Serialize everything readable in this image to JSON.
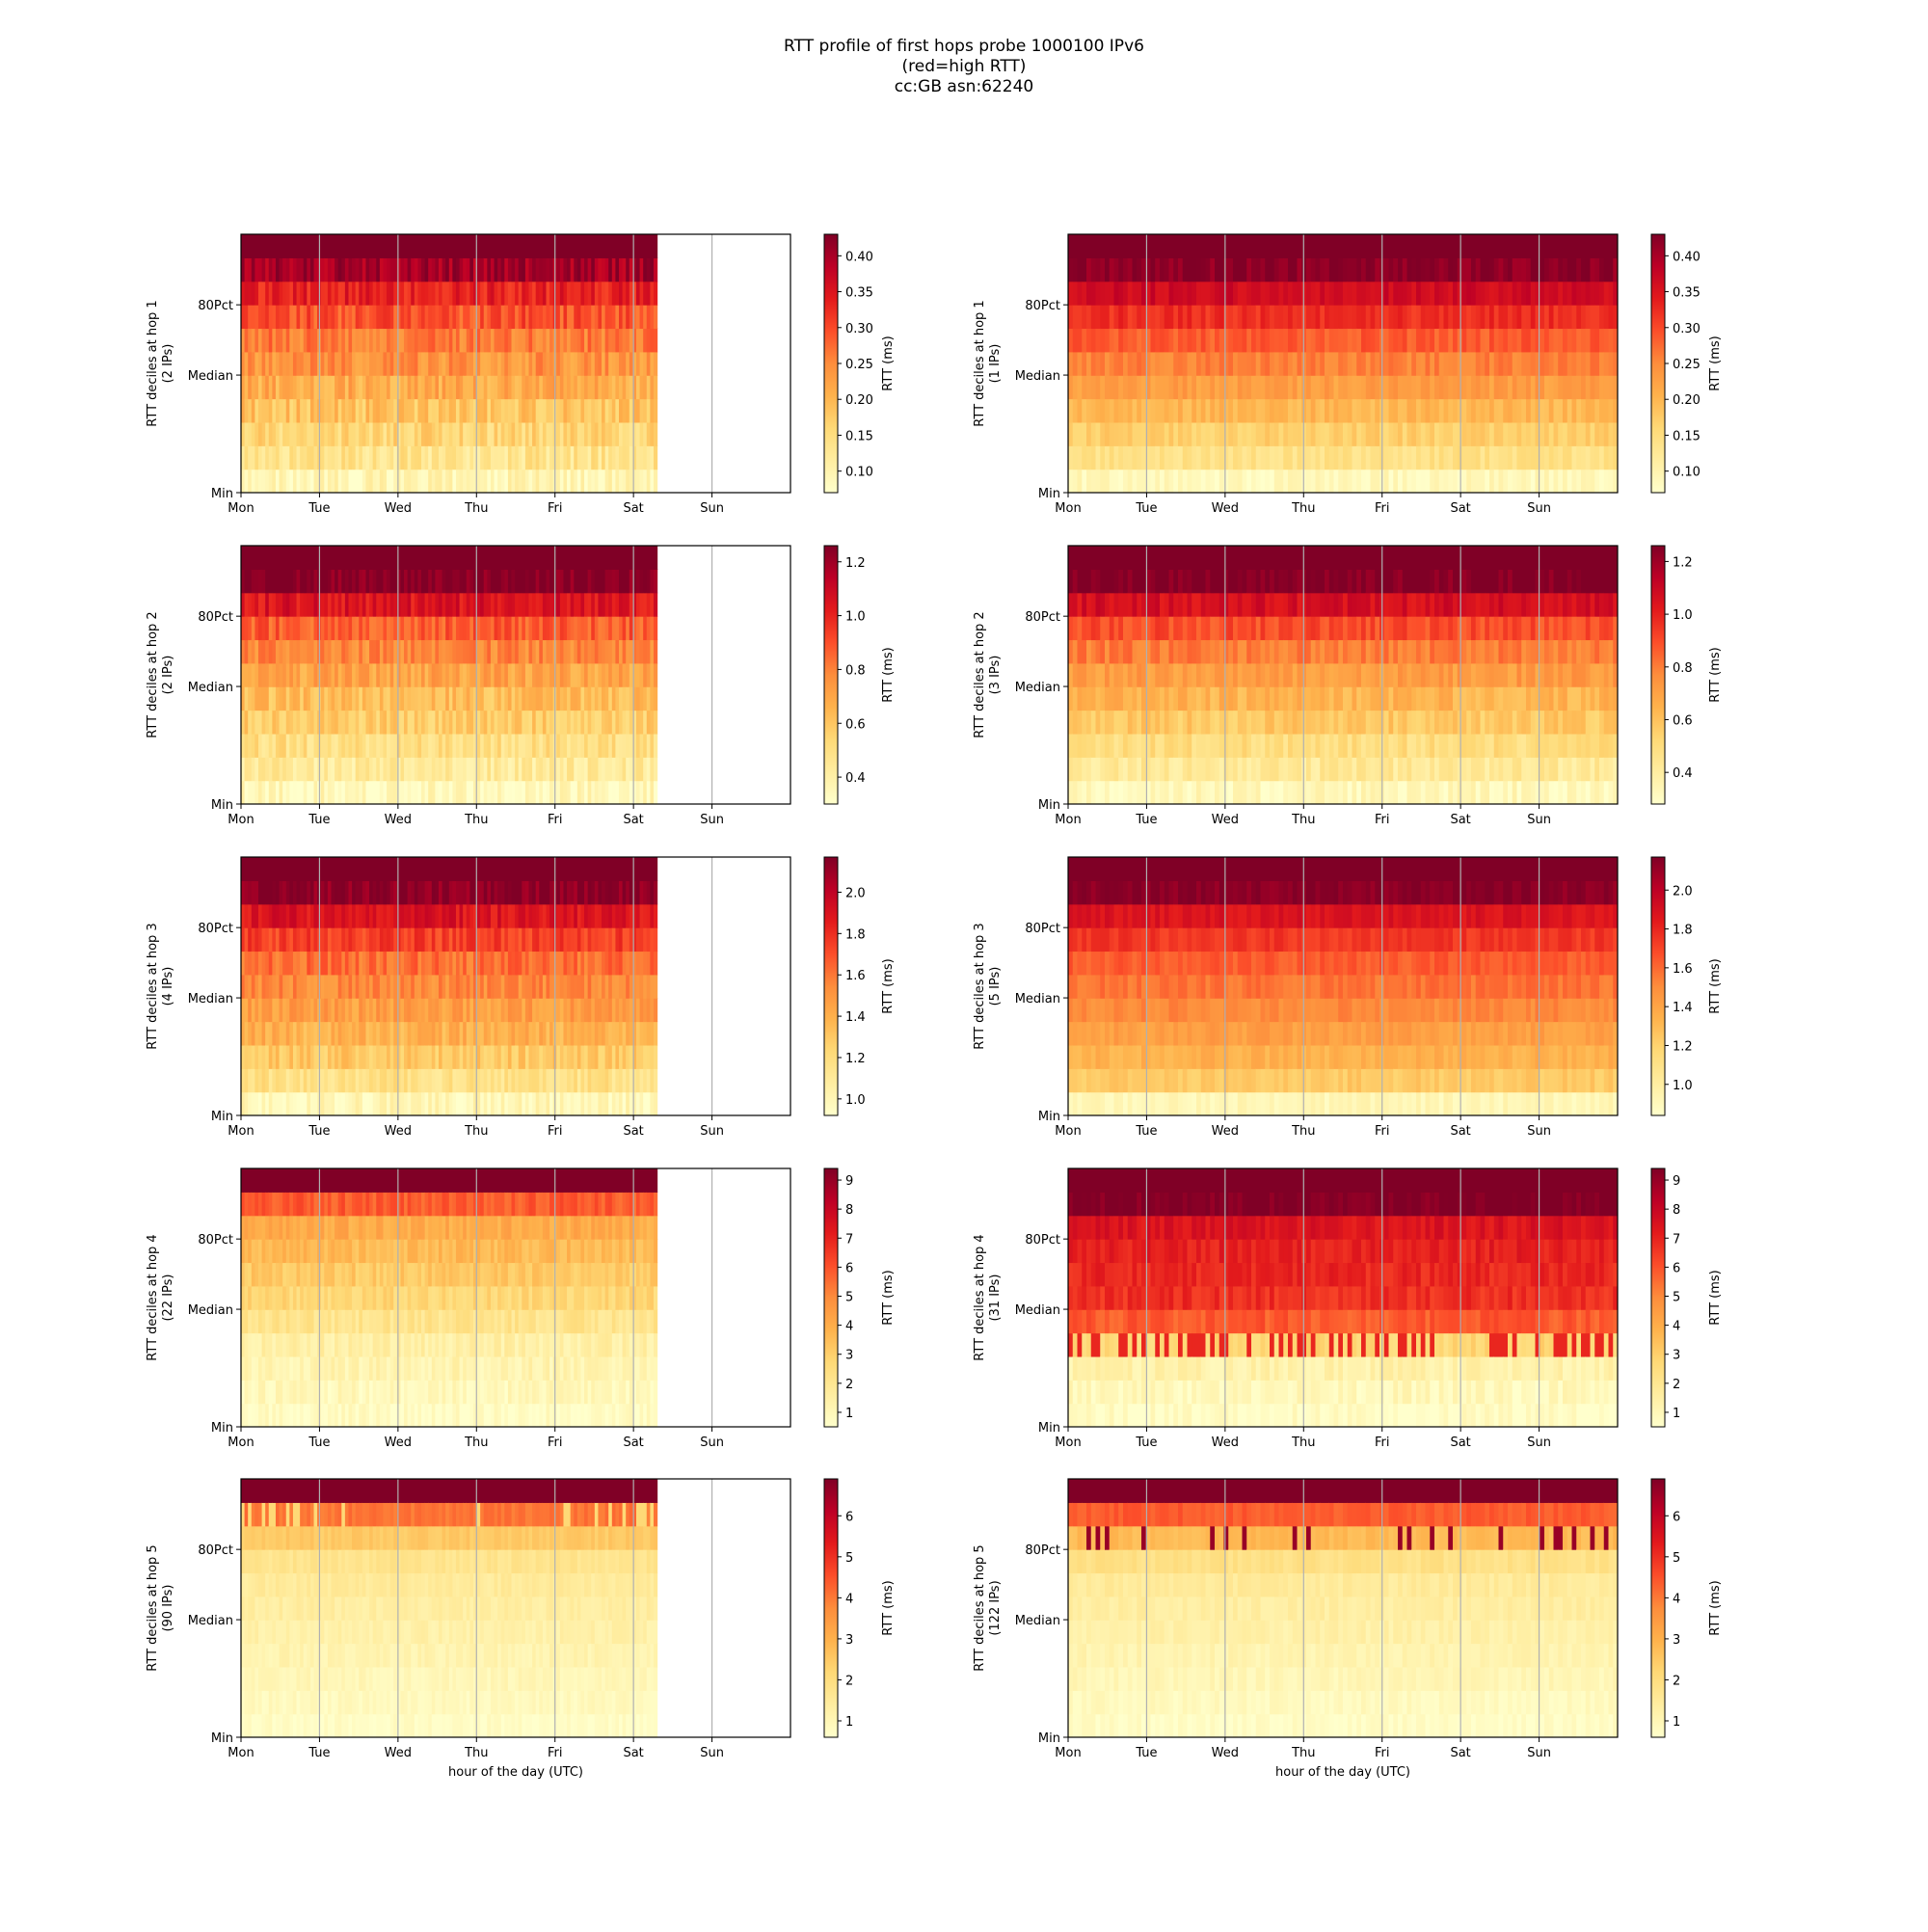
{
  "figure": {
    "title_lines": [
      "RTT profile of first hops probe 1000100 IPv6",
      "(red=high RTT)",
      "cc:GB asn:62240"
    ]
  },
  "chart_data": [
    {
      "type": "heatmap",
      "title": "",
      "xlabel": "",
      "ylabel": "RTT deciles at hop 1",
      "ylabel_sub": "(2 IPs)",
      "x_ticks": [
        "Mon",
        "Tue",
        "Wed",
        "Thu",
        "Fri",
        "Sat",
        "Sun"
      ],
      "y_ticks": [
        "Min",
        "Median",
        "80Pct"
      ],
      "x_extent_days": 7,
      "data_extent_days": 5.3,
      "grid": true,
      "colorbar": {
        "label": "RTT (ms)",
        "ticks": [
          "0.10",
          "0.15",
          "0.20",
          "0.25",
          "0.30",
          "0.35",
          "0.40"
        ],
        "range": [
          0.07,
          0.43
        ]
      },
      "colormap": "YlOrRd",
      "pattern": "hop1a"
    },
    {
      "type": "heatmap",
      "title": "",
      "xlabel": "",
      "ylabel": "RTT deciles at hop 1",
      "ylabel_sub": "(1 IPs)",
      "x_ticks": [
        "Mon",
        "Tue",
        "Wed",
        "Thu",
        "Fri",
        "Sat",
        "Sun"
      ],
      "y_ticks": [
        "Min",
        "Median",
        "80Pct"
      ],
      "x_extent_days": 7,
      "data_extent_days": 7,
      "grid": true,
      "colorbar": {
        "label": "RTT (ms)",
        "ticks": [
          "0.10",
          "0.15",
          "0.20",
          "0.25",
          "0.30",
          "0.35",
          "0.40"
        ],
        "range": [
          0.07,
          0.43
        ]
      },
      "colormap": "YlOrRd",
      "pattern": "hop1b"
    },
    {
      "type": "heatmap",
      "title": "",
      "xlabel": "",
      "ylabel": "RTT deciles at hop 2",
      "ylabel_sub": "(2 IPs)",
      "x_ticks": [
        "Mon",
        "Tue",
        "Wed",
        "Thu",
        "Fri",
        "Sat",
        "Sun"
      ],
      "y_ticks": [
        "Min",
        "Median",
        "80Pct"
      ],
      "x_extent_days": 7,
      "data_extent_days": 5.3,
      "grid": true,
      "colorbar": {
        "label": "RTT (ms)",
        "ticks": [
          "0.4",
          "0.6",
          "0.8",
          "1.0",
          "1.2"
        ],
        "range": [
          0.3,
          1.26
        ]
      },
      "colormap": "YlOrRd",
      "pattern": "hop2a"
    },
    {
      "type": "heatmap",
      "title": "",
      "xlabel": "",
      "ylabel": "RTT deciles at hop 2",
      "ylabel_sub": "(3 IPs)",
      "x_ticks": [
        "Mon",
        "Tue",
        "Wed",
        "Thu",
        "Fri",
        "Sat",
        "Sun"
      ],
      "y_ticks": [
        "Min",
        "Median",
        "80Pct"
      ],
      "x_extent_days": 7,
      "data_extent_days": 7,
      "grid": true,
      "colorbar": {
        "label": "RTT (ms)",
        "ticks": [
          "0.4",
          "0.6",
          "0.8",
          "1.0",
          "1.2"
        ],
        "range": [
          0.28,
          1.26
        ]
      },
      "colormap": "YlOrRd",
      "pattern": "hop2b"
    },
    {
      "type": "heatmap",
      "title": "",
      "xlabel": "",
      "ylabel": "RTT deciles at hop 3",
      "ylabel_sub": "(4 IPs)",
      "x_ticks": [
        "Mon",
        "Tue",
        "Wed",
        "Thu",
        "Fri",
        "Sat",
        "Sun"
      ],
      "y_ticks": [
        "Min",
        "Median",
        "80Pct"
      ],
      "x_extent_days": 7,
      "data_extent_days": 5.3,
      "grid": true,
      "colorbar": {
        "label": "RTT (ms)",
        "ticks": [
          "1.0",
          "1.2",
          "1.4",
          "1.6",
          "1.8",
          "2.0"
        ],
        "range": [
          0.92,
          2.17
        ]
      },
      "colormap": "YlOrRd",
      "pattern": "hop3a"
    },
    {
      "type": "heatmap",
      "title": "",
      "xlabel": "",
      "ylabel": "RTT deciles at hop 3",
      "ylabel_sub": "(5 IPs)",
      "x_ticks": [
        "Mon",
        "Tue",
        "Wed",
        "Thu",
        "Fri",
        "Sat",
        "Sun"
      ],
      "y_ticks": [
        "Min",
        "Median",
        "80Pct"
      ],
      "x_extent_days": 7,
      "data_extent_days": 7,
      "grid": true,
      "colorbar": {
        "label": "RTT (ms)",
        "ticks": [
          "1.0",
          "1.2",
          "1.4",
          "1.6",
          "1.8",
          "2.0"
        ],
        "range": [
          0.84,
          2.17
        ]
      },
      "colormap": "YlOrRd",
      "pattern": "hop3b"
    },
    {
      "type": "heatmap",
      "title": "",
      "xlabel": "",
      "ylabel": "RTT deciles at hop 4",
      "ylabel_sub": "(22 IPs)",
      "x_ticks": [
        "Mon",
        "Tue",
        "Wed",
        "Thu",
        "Fri",
        "Sat",
        "Sun"
      ],
      "y_ticks": [
        "Min",
        "Median",
        "80Pct"
      ],
      "x_extent_days": 7,
      "data_extent_days": 5.3,
      "grid": true,
      "colorbar": {
        "label": "RTT (ms)",
        "ticks": [
          "1",
          "2",
          "3",
          "4",
          "5",
          "6",
          "7",
          "8",
          "9"
        ],
        "range": [
          0.5,
          9.4
        ]
      },
      "colormap": "YlOrRd",
      "pattern": "hop4a"
    },
    {
      "type": "heatmap",
      "title": "",
      "xlabel": "",
      "ylabel": "RTT deciles at hop 4",
      "ylabel_sub": "(31 IPs)",
      "x_ticks": [
        "Mon",
        "Tue",
        "Wed",
        "Thu",
        "Fri",
        "Sat",
        "Sun"
      ],
      "y_ticks": [
        "Min",
        "Median",
        "80Pct"
      ],
      "x_extent_days": 7,
      "data_extent_days": 7,
      "grid": true,
      "colorbar": {
        "label": "RTT (ms)",
        "ticks": [
          "1",
          "2",
          "3",
          "4",
          "5",
          "6",
          "7",
          "8",
          "9"
        ],
        "range": [
          0.5,
          9.4
        ]
      },
      "colormap": "YlOrRd",
      "pattern": "hop4b"
    },
    {
      "type": "heatmap",
      "title": "",
      "xlabel": "hour of the day (UTC)",
      "ylabel": "RTT deciles at hop 5",
      "ylabel_sub": "(90 IPs)",
      "x_ticks": [
        "Mon",
        "Tue",
        "Wed",
        "Thu",
        "Fri",
        "Sat",
        "Sun"
      ],
      "y_ticks": [
        "Min",
        "Median",
        "80Pct"
      ],
      "x_extent_days": 7,
      "data_extent_days": 5.3,
      "grid": true,
      "colorbar": {
        "label": "RTT (ms)",
        "ticks": [
          "1",
          "2",
          "3",
          "4",
          "5",
          "6"
        ],
        "range": [
          0.6,
          6.9
        ]
      },
      "colormap": "YlOrRd",
      "pattern": "hop5a"
    },
    {
      "type": "heatmap",
      "title": "",
      "xlabel": "hour of the day (UTC)",
      "ylabel": "RTT deciles at hop 5",
      "ylabel_sub": "(122 IPs)",
      "x_ticks": [
        "Mon",
        "Tue",
        "Wed",
        "Thu",
        "Fri",
        "Sat",
        "Sun"
      ],
      "y_ticks": [
        "Min",
        "Median",
        "80Pct"
      ],
      "x_extent_days": 7,
      "data_extent_days": 7,
      "grid": true,
      "colorbar": {
        "label": "RTT (ms)",
        "ticks": [
          "1",
          "2",
          "3",
          "4",
          "5",
          "6"
        ],
        "range": [
          0.6,
          6.9
        ]
      },
      "colormap": "YlOrRd",
      "pattern": "hop5b"
    }
  ]
}
